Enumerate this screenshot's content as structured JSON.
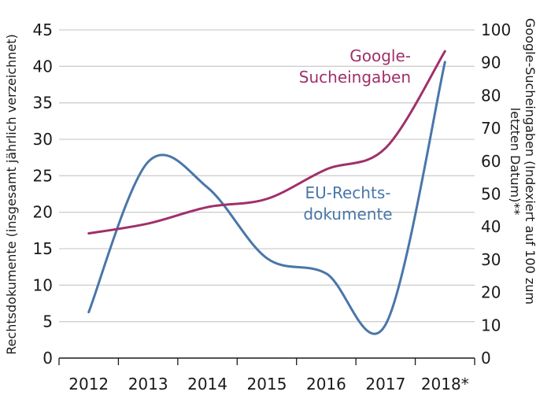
{
  "colors": {
    "eu": "#4a76a8",
    "google": "#a0306a",
    "grid": "#cfcfcf",
    "axis": "#1a1a1a"
  },
  "chart_data": {
    "type": "line",
    "x": [
      "2012",
      "2013",
      "2014",
      "2015",
      "2016",
      "2017",
      "2018*"
    ],
    "y_left_label": "Rechtsdokumente (insgesamt jährlich verzeichnet)",
    "y_right_label_lines": [
      "Google-Sucheingaben (Indexiert auf 100 zum",
      "letzten Datum)**"
    ],
    "y_left_ticks": [
      0,
      5,
      10,
      15,
      20,
      25,
      30,
      35,
      40,
      45
    ],
    "y_right_ticks": [
      0,
      10,
      20,
      30,
      40,
      50,
      60,
      70,
      80,
      90,
      100
    ],
    "y_left_lim": [
      0,
      45
    ],
    "y_right_lim": [
      0,
      100
    ],
    "grid": "horizontal",
    "series": [
      {
        "name": "EU-Rechts-dokumente",
        "label_lines": [
          "EU-Rechts-",
          "dokumente"
        ],
        "axis": "left",
        "color_key": "eu",
        "values": [
          6.3,
          26.9,
          23.4,
          13.7,
          11.6,
          4.6,
          40.6
        ]
      },
      {
        "name": "Google-Sucheingaben",
        "label_lines": [
          "Google-",
          "Sucheingaben"
        ],
        "axis": "right",
        "color_key": "google",
        "values": [
          38,
          41,
          46,
          48.5,
          57.5,
          64,
          93.5
        ]
      }
    ]
  }
}
